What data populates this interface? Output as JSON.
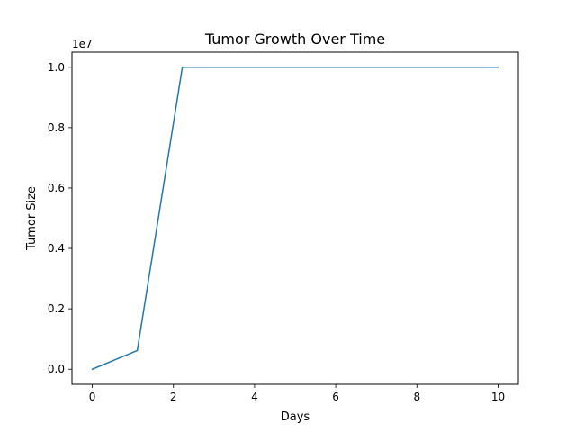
{
  "chart_data": {
    "type": "line",
    "title": "Tumor Growth Over Time",
    "xlabel": "Days",
    "ylabel": "Tumor Size",
    "y_offset_label": "1e7",
    "x_ticks": [
      0,
      2,
      4,
      6,
      8,
      10
    ],
    "x_tick_labels": [
      "0",
      "2",
      "4",
      "6",
      "8",
      "10"
    ],
    "y_ticks": [
      0.0,
      0.2,
      0.4,
      0.6,
      0.8,
      1.0
    ],
    "y_tick_labels": [
      "0.0",
      "0.2",
      "0.4",
      "0.6",
      "0.8",
      "1.0"
    ],
    "xlim": [
      -0.5,
      10.5
    ],
    "ylim": [
      -0.05,
      1.05
    ],
    "grid": false,
    "legend": "none",
    "series": [
      {
        "color": "#1f77b4",
        "x": [
          0,
          1.11,
          2.22,
          3.33,
          4.44,
          5.56,
          6.67,
          7.78,
          8.89,
          10
        ],
        "y": [
          0.0,
          0.062,
          1.0,
          1.0,
          1.0,
          1.0,
          1.0,
          1.0,
          1.0,
          1.0
        ]
      }
    ]
  }
}
